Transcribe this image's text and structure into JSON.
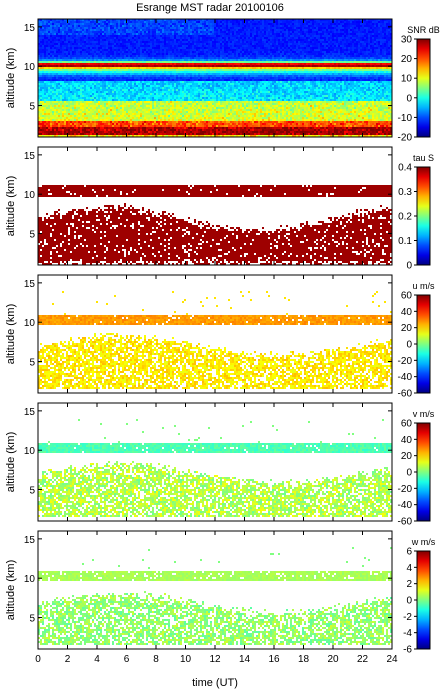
{
  "chart_data": {
    "type": "heatmap",
    "title": "Esrange MST radar 20100106",
    "xlabel": "time (UT)",
    "xlim": [
      0,
      24
    ],
    "x_ticks": [
      "0",
      "2",
      "4",
      "6",
      "8",
      "10",
      "12",
      "14",
      "16",
      "18",
      "20",
      "22",
      "24"
    ],
    "panels": [
      {
        "ylabel": "altitude (km)",
        "ylim": [
          1,
          16
        ],
        "y_ticks": [
          "5",
          "10",
          "15"
        ],
        "colorbar_label": "SNR dB",
        "clim": [
          -20,
          30
        ],
        "colorbar_ticks": [
          "30",
          "20",
          "10",
          "0",
          "-10",
          "-20"
        ],
        "colormap": "jet",
        "features": [
          {
            "altitude_km": 1.5,
            "level": "red (~25 dB)"
          },
          {
            "altitude_km": 3.5,
            "level": "yellow-green (~10 dB)"
          },
          {
            "altitude_km": 10.2,
            "level": "yellow (~15 dB)"
          },
          {
            "altitude_km": 13,
            "level": "blue (~-15 dB)"
          }
        ]
      },
      {
        "ylabel": "altitude (km)",
        "ylim": [
          1,
          16
        ],
        "y_ticks": [
          "5",
          "10",
          "15"
        ],
        "colorbar_label": "tau S",
        "clim": [
          0,
          0.4
        ],
        "colorbar_ticks": [
          "0.4",
          "0.3",
          "0.2",
          "0.1",
          "0"
        ],
        "colormap": "jet",
        "features": [
          {
            "altitude_km_range": [
              9.6,
              11.2
            ],
            "level": "dark red"
          },
          {
            "altitude_km_range": [
              1.5,
              7.5
            ],
            "level": "dark red"
          }
        ]
      },
      {
        "ylabel": "altitude (km)",
        "ylim": [
          1,
          16
        ],
        "y_ticks": [
          "5",
          "10",
          "15"
        ],
        "colorbar_label": "u m/s",
        "clim": [
          -60,
          60
        ],
        "colorbar_ticks": [
          "60",
          "40",
          "20",
          "0",
          "-20",
          "-40",
          "-60"
        ],
        "colormap": "jet",
        "features": [
          {
            "altitude_km_range": [
              9.6,
              11.0
            ],
            "level": "yellow (~25 m/s)"
          },
          {
            "altitude_km_range": [
              1.5,
              7.5
            ],
            "level": "yellow-green (~15 m/s)"
          }
        ]
      },
      {
        "ylabel": "altitude (km)",
        "ylim": [
          1,
          16
        ],
        "y_ticks": [
          "5",
          "10",
          "15"
        ],
        "colorbar_label": "v m/s",
        "clim": [
          -60,
          60
        ],
        "colorbar_ticks": [
          "60",
          "40",
          "20",
          "0",
          "-20",
          "-40",
          "-60"
        ],
        "colormap": "jet",
        "features": [
          {
            "altitude_km_range": [
              9.6,
              11.0
            ],
            "level": "cyan-green (~-5 m/s)"
          },
          {
            "altitude_km_range": [
              1.5,
              7.5
            ],
            "level": "green (~0 m/s)"
          }
        ]
      },
      {
        "ylabel": "altitude (km)",
        "ylim": [
          1,
          16
        ],
        "y_ticks": [
          "5",
          "10",
          "15"
        ],
        "colorbar_label": "w m/s",
        "clim": [
          -6,
          6
        ],
        "colorbar_ticks": [
          "6",
          "4",
          "2",
          "0",
          "-2",
          "-4",
          "-6"
        ],
        "colormap": "jet",
        "features": [
          {
            "altitude_km_range": [
              9.6,
              11.0
            ],
            "level": "green (~0 m/s)"
          },
          {
            "altitude_km_range": [
              1.5,
              7.5
            ],
            "level": "green (~0 m/s)"
          }
        ]
      }
    ]
  }
}
